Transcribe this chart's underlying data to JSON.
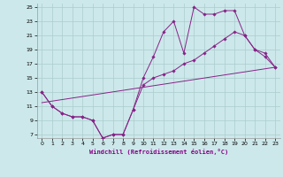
{
  "xlabel": "Windchill (Refroidissement éolien,°C)",
  "background_color": "#cce8ea",
  "grid_color": "#aacccc",
  "line_color": "#882288",
  "xlim": [
    -0.5,
    23.5
  ],
  "ylim": [
    6.5,
    25.5
  ],
  "xticks": [
    0,
    1,
    2,
    3,
    4,
    5,
    6,
    7,
    8,
    9,
    10,
    11,
    12,
    13,
    14,
    15,
    16,
    17,
    18,
    19,
    20,
    21,
    22,
    23
  ],
  "yticks": [
    7,
    9,
    11,
    13,
    15,
    17,
    19,
    21,
    23,
    25
  ],
  "line1_x": [
    0,
    1,
    2,
    3,
    4,
    5,
    6,
    7,
    8,
    9,
    10,
    11,
    12,
    13,
    14,
    15,
    16,
    17,
    18,
    19,
    20,
    21,
    22,
    23
  ],
  "line1_y": [
    13,
    11,
    10,
    9.5,
    9.5,
    9,
    6.5,
    7,
    7,
    10.5,
    15,
    18,
    21.5,
    23,
    18.5,
    25,
    24,
    24,
    24.5,
    24.5,
    21,
    19,
    18.5,
    16.5
  ],
  "line2_x": [
    0,
    1,
    2,
    3,
    4,
    5,
    6,
    7,
    8,
    9,
    10,
    11,
    12,
    13,
    14,
    15,
    16,
    17,
    18,
    19,
    20,
    21,
    22,
    23
  ],
  "line2_y": [
    13,
    11,
    10,
    9.5,
    9.5,
    9,
    6.5,
    7,
    7,
    10.5,
    14,
    15,
    15.5,
    16,
    17,
    17.5,
    18.5,
    19.5,
    20.5,
    21.5,
    21,
    19,
    18,
    16.5
  ],
  "line3_x": [
    0,
    23
  ],
  "line3_y": [
    11.5,
    16.5
  ]
}
